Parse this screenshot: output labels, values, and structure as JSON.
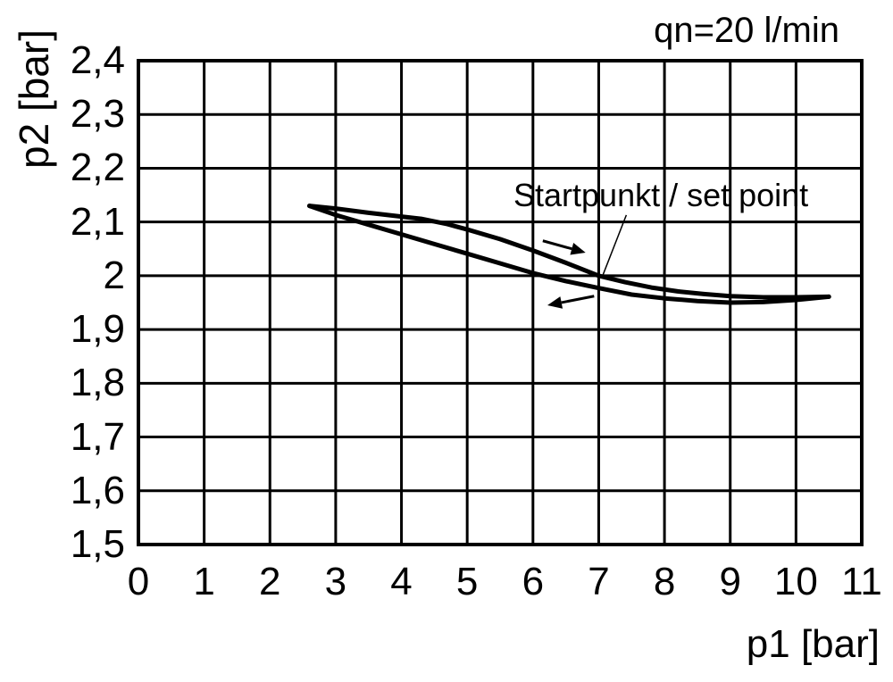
{
  "chart_data": {
    "type": "line",
    "title": "qn=20 l/min",
    "xlabel": "p1 [bar]",
    "ylabel": "p2 [bar]",
    "xlim": [
      0,
      11
    ],
    "ylim": [
      1.5,
      2.4
    ],
    "grid": true,
    "legend": "none",
    "line_color": "#000000",
    "grid_color": "#000000",
    "x_ticks": [
      0,
      1,
      2,
      3,
      4,
      5,
      6,
      7,
      8,
      9,
      10,
      11
    ],
    "x_tick_labels": [
      "0",
      "1",
      "2",
      "3",
      "4",
      "5",
      "6",
      "7",
      "8",
      "9",
      "10",
      "11"
    ],
    "y_ticks": [
      1.5,
      1.6,
      1.7,
      1.8,
      1.9,
      2.0,
      2.1,
      2.2,
      2.3,
      2.4
    ],
    "y_tick_labels": [
      "1,5",
      "1,6",
      "1,7",
      "1,8",
      "1,9",
      "2",
      "2,1",
      "2,2",
      "2,3",
      "2,4"
    ],
    "series": [
      {
        "name": "upper-branch",
        "points": [
          [
            2.6,
            2.13
          ],
          [
            3.0,
            2.125
          ],
          [
            3.5,
            2.117
          ],
          [
            4.0,
            2.11
          ],
          [
            4.3,
            2.106
          ],
          [
            4.7,
            2.096
          ],
          [
            5.0,
            2.086
          ],
          [
            5.5,
            2.068
          ],
          [
            6.0,
            2.047
          ],
          [
            6.5,
            2.024
          ],
          [
            7.0,
            2.0
          ],
          [
            7.4,
            1.988
          ],
          [
            7.8,
            1.978
          ],
          [
            8.2,
            1.971
          ],
          [
            8.6,
            1.966
          ],
          [
            9.0,
            1.962
          ],
          [
            9.5,
            1.96
          ],
          [
            10.0,
            1.96
          ],
          [
            10.5,
            1.961
          ]
        ]
      },
      {
        "name": "lower-branch",
        "points": [
          [
            2.6,
            2.13
          ],
          [
            3.0,
            2.113
          ],
          [
            3.5,
            2.095
          ],
          [
            4.0,
            2.077
          ],
          [
            4.5,
            2.059
          ],
          [
            5.0,
            2.041
          ],
          [
            5.5,
            2.023
          ],
          [
            6.0,
            2.005
          ],
          [
            6.5,
            1.99
          ],
          [
            7.0,
            1.977
          ],
          [
            7.5,
            1.965
          ],
          [
            8.0,
            1.958
          ],
          [
            8.5,
            1.953
          ],
          [
            9.0,
            1.95
          ],
          [
            9.5,
            1.951
          ],
          [
            10.0,
            1.955
          ],
          [
            10.5,
            1.961
          ]
        ]
      }
    ],
    "annotations": [
      {
        "text": "Startpunkt / set point",
        "leader_from": [
          7.42,
          2.113
        ],
        "leader_to": [
          7.05,
          1.997
        ]
      }
    ],
    "arrows": [
      {
        "direction": "right",
        "from": [
          6.15,
          2.065
        ],
        "to": [
          6.8,
          2.043
        ]
      },
      {
        "direction": "left",
        "from": [
          6.93,
          1.962
        ],
        "to": [
          6.22,
          1.945
        ]
      }
    ]
  }
}
